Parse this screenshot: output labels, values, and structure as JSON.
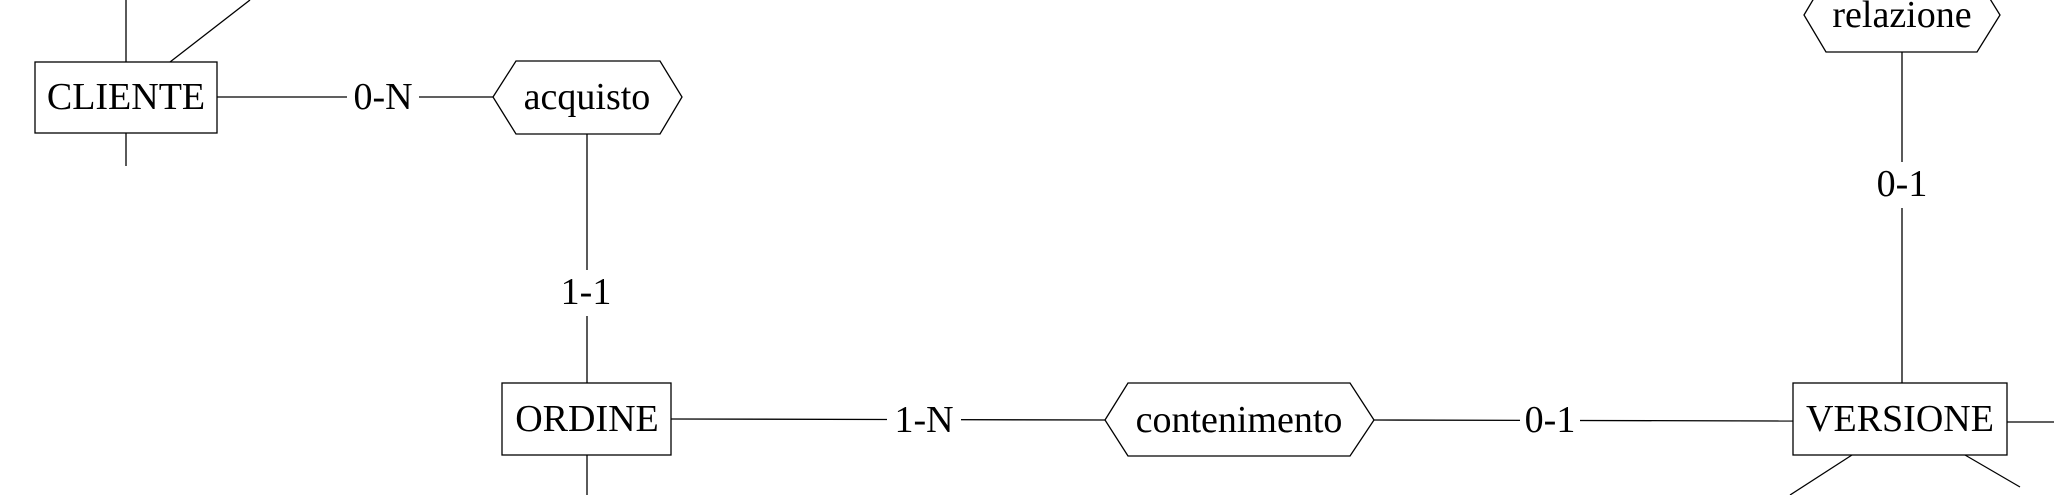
{
  "diagram": {
    "entities": {
      "cliente": "CLIENTE",
      "ordine": "ORDINE",
      "versione": "VERSIONE"
    },
    "relationships": {
      "acquisto": "acquisto",
      "contenimento": "contenimento",
      "relazione": "relazione"
    },
    "cardinalities": {
      "cliente_acquisto": "0-N",
      "acquisto_ordine": "1-1",
      "ordine_contenimento": "1-N",
      "contenimento_versione": "0-1",
      "relazione_versione": "0-1"
    }
  }
}
